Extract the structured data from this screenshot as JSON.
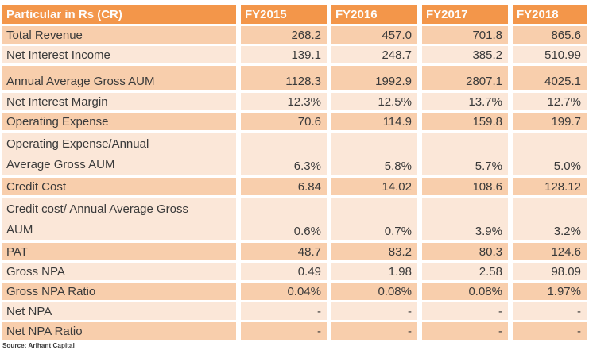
{
  "chart_data": {
    "type": "table",
    "title": "Particular in Rs (CR)",
    "columns": [
      "Particular in Rs (CR)",
      "FY2015",
      "FY2016",
      "FY2017",
      "FY2018"
    ],
    "rows": [
      {
        "label": "Total Revenue",
        "values": [
          "268.2",
          "457.0",
          "701.8",
          "865.6"
        ]
      },
      {
        "label": "Net Interest Income",
        "values": [
          "139.1",
          "248.7",
          "385.2",
          "510.99"
        ]
      },
      {
        "label": "Annual Average Gross AUM",
        "values": [
          "1128.3",
          "1992.9",
          "2807.1",
          "4025.1"
        ]
      },
      {
        "label": "Net Interest Margin",
        "values": [
          "12.3%",
          "12.5%",
          "13.7%",
          "12.7%"
        ]
      },
      {
        "label": "Operating Expense",
        "values": [
          "70.6",
          "114.9",
          "159.8",
          "199.7"
        ]
      },
      {
        "label": "Operating Expense/Annual\nAverage Gross AUM",
        "values": [
          "6.3%",
          "5.8%",
          "5.7%",
          "5.0%"
        ]
      },
      {
        "label": "Credit Cost",
        "values": [
          "6.84",
          "14.02",
          "108.6",
          "128.12"
        ]
      },
      {
        "label": "Credit cost/ Annual Average Gross\nAUM",
        "values": [
          "0.6%",
          "0.7%",
          "3.9%",
          "3.2%"
        ]
      },
      {
        "label": "PAT",
        "values": [
          "48.7",
          "83.2",
          "80.3",
          "124.6"
        ]
      },
      {
        "label": "Gross NPA",
        "values": [
          "0.49",
          "1.98",
          "2.58",
          "98.09"
        ]
      },
      {
        "label": "Gross NPA Ratio",
        "values": [
          "0.04%",
          "0.08%",
          "0.08%",
          "1.97%"
        ]
      },
      {
        "label": "Net NPA",
        "values": [
          "-",
          "-",
          "-",
          "-"
        ]
      },
      {
        "label": "Net NPA Ratio",
        "values": [
          "-",
          "-",
          "-",
          "-"
        ]
      }
    ],
    "legend": null,
    "grid": "white cell separators",
    "colors": {
      "header_bg": "#f3964a",
      "header_text": "#fdfdfd",
      "row_dark_bg": "#f8ceac",
      "row_light_bg": "#fbe7d8",
      "body_text": "#3a3a3a"
    }
  },
  "footer": {
    "source_note": "Source: Arihant Capital"
  }
}
